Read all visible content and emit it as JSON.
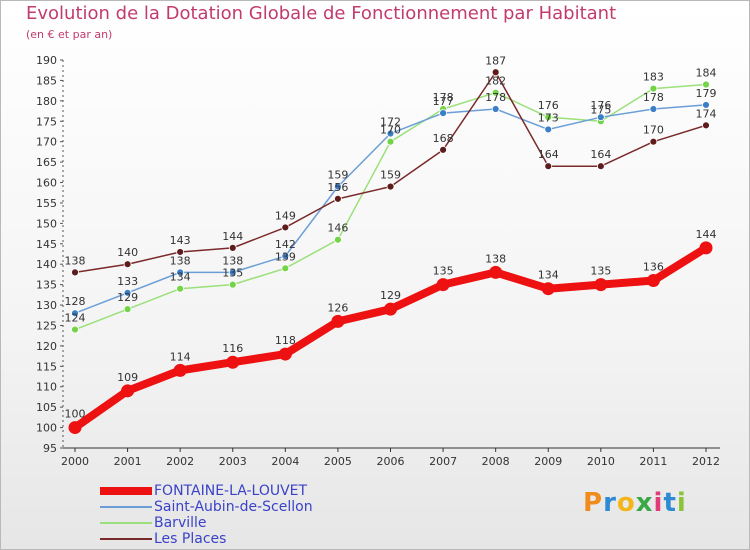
{
  "colors": {
    "title": "#c23b6e",
    "legend_text": "#3a43c8"
  },
  "logo": {
    "text": "Proxiti",
    "letters": [
      "P",
      "r",
      "o",
      "x",
      "i",
      "t",
      "i"
    ],
    "letter_colors": [
      "#f08c1e",
      "#2e8bd3",
      "#f2b51a",
      "#3aa845",
      "#e23b7a",
      "#2e8bd3",
      "#8ac43a"
    ]
  },
  "chart_data": {
    "type": "line",
    "title": "Evolution de la Dotation Globale de Fonctionnement par Habitant",
    "subtitle": "(en € et par an)",
    "xlabel": "",
    "ylabel": "",
    "x": [
      2000,
      2001,
      2002,
      2003,
      2004,
      2005,
      2006,
      2007,
      2008,
      2009,
      2010,
      2011,
      2012
    ],
    "ylim": [
      95,
      190
    ],
    "yticks": [
      95,
      100,
      105,
      110,
      115,
      120,
      125,
      130,
      135,
      140,
      145,
      150,
      155,
      160,
      165,
      170,
      175,
      180,
      185,
      190
    ],
    "grid": false,
    "legend_position": "bottom-left",
    "series": [
      {
        "name": "FONTAINE-LA-LOUVET",
        "color": "#ee1111",
        "marker": "#ee1111",
        "width": "thick",
        "values": [
          100,
          109,
          114,
          116,
          118,
          126,
          129,
          135,
          138,
          134,
          135,
          136,
          144
        ]
      },
      {
        "name": "Saint-Aubin-de-Scellon",
        "color": "#6b9ed6",
        "marker": "#3d7fc7",
        "width": "thin",
        "values": [
          128,
          133,
          138,
          138,
          142,
          159,
          172,
          177,
          178,
          173,
          176,
          178,
          179
        ]
      },
      {
        "name": "Barville",
        "color": "#9be07a",
        "marker": "#72d446",
        "width": "thin",
        "values": [
          124,
          129,
          134,
          135,
          139,
          146,
          170,
          178,
          182,
          176,
          175,
          183,
          184
        ]
      },
      {
        "name": "Les Places",
        "color": "#7a2a2a",
        "marker": "#5e1c1c",
        "width": "thin",
        "values": [
          138,
          140,
          143,
          144,
          149,
          156,
          159,
          168,
          187,
          164,
          164,
          170,
          174
        ]
      }
    ],
    "draw_order": [
      "Barville",
      "Saint-Aubin-de-Scellon",
      "Les Places",
      "FONTAINE-LA-LOUVET"
    ]
  }
}
